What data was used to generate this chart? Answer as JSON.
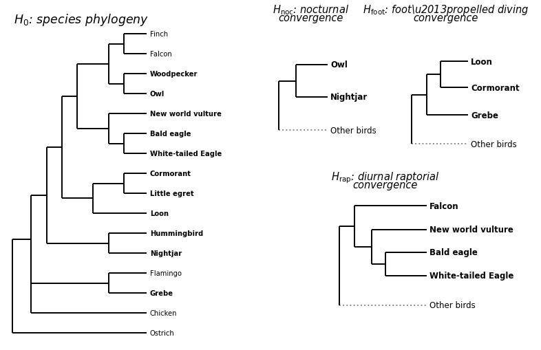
{
  "bg_color": "#ffffff",
  "species_h0": [
    "Finch",
    "Falcon",
    "Woodpecker",
    "Owl",
    "New world vulture",
    "Bald eagle",
    "White-tailed Eagle",
    "Cormorant",
    "Little egret",
    "Loon",
    "Hummingbird",
    "Nightjar",
    "Flamingo",
    "Grebe",
    "Chicken",
    "Ostrich"
  ],
  "bold_species": [
    "Woodpecker",
    "Owl",
    "New world vulture",
    "Bald eagle",
    "White-tailed Eagle",
    "Cormorant",
    "Little egret",
    "Loon",
    "Hummingbird",
    "Nightjar",
    "Grebe"
  ],
  "line_color": "#000000",
  "dotted_color": "#888888",
  "lw": 1.4
}
